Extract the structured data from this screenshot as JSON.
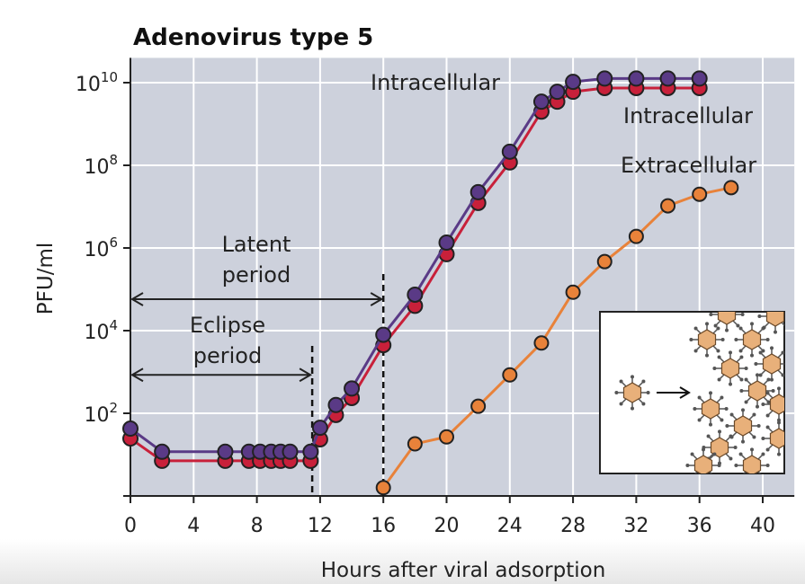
{
  "chart_data": {
    "type": "line",
    "title": "Adenovirus type 5",
    "xlabel": "Hours after viral adsorption",
    "ylabel": "PFU/ml",
    "xlim": [
      0,
      42
    ],
    "ylim_log10": [
      0,
      10.6
    ],
    "yscale": "log",
    "xticks": [
      0,
      4,
      8,
      12,
      16,
      20,
      24,
      28,
      32,
      36,
      40
    ],
    "yticks": [
      {
        "base": "10",
        "exp": "2",
        "v": 2
      },
      {
        "base": "10",
        "exp": "4",
        "v": 4
      },
      {
        "base": "10",
        "exp": "6",
        "v": 6
      },
      {
        "base": "10",
        "exp": "8",
        "v": 8
      },
      {
        "base": "10",
        "exp": "10",
        "v": 10
      }
    ],
    "grid": true,
    "series": [
      {
        "name": "Intracellular",
        "color": "#5a3a86",
        "x": [
          0,
          2,
          6,
          7.5,
          8.2,
          8.9,
          9.5,
          10.1,
          11.4,
          12,
          13,
          14,
          16,
          18,
          20,
          22,
          24,
          26,
          27,
          28,
          30,
          32,
          34,
          36
        ],
        "log10_y": [
          1.63,
          1.07,
          1.07,
          1.07,
          1.07,
          1.07,
          1.07,
          1.07,
          1.07,
          1.65,
          2.2,
          2.6,
          3.9,
          4.87,
          6.13,
          7.35,
          8.33,
          9.54,
          9.78,
          10.02,
          10.1,
          10.1,
          10.1,
          10.1
        ]
      },
      {
        "name": "Intracellular",
        "color": "#c8203a",
        "x": [
          0,
          2,
          6,
          7.5,
          8.2,
          8.9,
          9.5,
          10.1,
          11.4,
          12,
          13,
          14,
          16,
          18,
          20,
          22,
          24,
          26,
          27,
          28,
          30,
          32,
          34,
          36
        ],
        "log10_y": [
          1.39,
          0.85,
          0.85,
          0.85,
          0.85,
          0.85,
          0.85,
          0.85,
          0.85,
          1.37,
          1.96,
          2.37,
          3.65,
          4.6,
          5.85,
          7.09,
          8.07,
          9.3,
          9.54,
          9.78,
          9.87,
          9.87,
          9.87,
          9.87
        ]
      },
      {
        "name": "Extracellular",
        "color": "#e8823a",
        "x": [
          16,
          18,
          20,
          22,
          24,
          26,
          28,
          30,
          32,
          34,
          36,
          38
        ],
        "log10_y": [
          0.2,
          1.26,
          1.43,
          2.17,
          2.93,
          3.7,
          4.93,
          5.67,
          6.28,
          7.02,
          7.3,
          7.46
        ]
      }
    ],
    "annotations": {
      "latent": [
        "Latent",
        "period"
      ],
      "latent_end": 16,
      "eclipse": [
        "Eclipse",
        "period"
      ],
      "eclipse_end": 11.5
    }
  }
}
